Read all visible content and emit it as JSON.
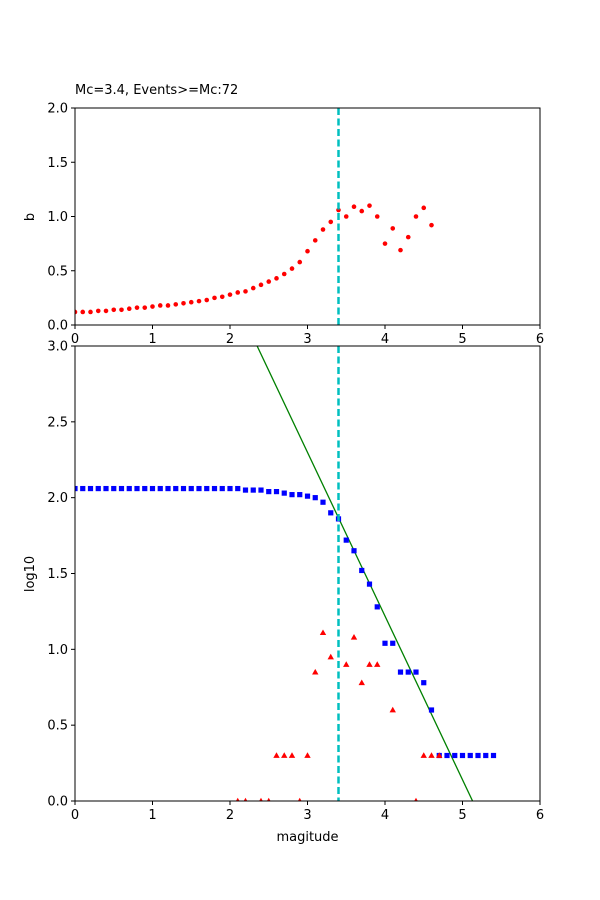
{
  "chart_data": [
    {
      "type": "scatter",
      "title": "Mc=3.4, Events>=Mc:72",
      "xlabel": "",
      "ylabel": "b",
      "xlim": [
        0,
        6
      ],
      "ylim": [
        0,
        2
      ],
      "xticks": [
        "0",
        "1",
        "2",
        "3",
        "4",
        "5",
        "6"
      ],
      "yticks": [
        "0.0",
        "0.5",
        "1.0",
        "1.5",
        "2.0"
      ],
      "grid": false,
      "mc_line": {
        "x": 3.4,
        "color": "#00bfbf"
      },
      "series": [
        {
          "marker": "circle",
          "color": "#ff0000",
          "points": [
            [
              0.0,
              0.12
            ],
            [
              0.1,
              0.12
            ],
            [
              0.2,
              0.12
            ],
            [
              0.3,
              0.13
            ],
            [
              0.4,
              0.13
            ],
            [
              0.5,
              0.14
            ],
            [
              0.6,
              0.14
            ],
            [
              0.7,
              0.15
            ],
            [
              0.8,
              0.16
            ],
            [
              0.9,
              0.16
            ],
            [
              1.0,
              0.17
            ],
            [
              1.1,
              0.18
            ],
            [
              1.2,
              0.18
            ],
            [
              1.3,
              0.19
            ],
            [
              1.4,
              0.2
            ],
            [
              1.5,
              0.21
            ],
            [
              1.6,
              0.22
            ],
            [
              1.7,
              0.23
            ],
            [
              1.8,
              0.25
            ],
            [
              1.9,
              0.26
            ],
            [
              2.0,
              0.28
            ],
            [
              2.1,
              0.3
            ],
            [
              2.2,
              0.31
            ],
            [
              2.3,
              0.34
            ],
            [
              2.4,
              0.37
            ],
            [
              2.5,
              0.4
            ],
            [
              2.6,
              0.43
            ],
            [
              2.7,
              0.47
            ],
            [
              2.8,
              0.52
            ],
            [
              2.9,
              0.58
            ],
            [
              3.0,
              0.68
            ],
            [
              3.1,
              0.78
            ],
            [
              3.2,
              0.88
            ],
            [
              3.3,
              0.95
            ],
            [
              3.4,
              1.06
            ],
            [
              3.5,
              1.0
            ],
            [
              3.6,
              1.09
            ],
            [
              3.7,
              1.05
            ],
            [
              3.8,
              1.1
            ],
            [
              3.9,
              1.0
            ],
            [
              4.0,
              0.75
            ],
            [
              4.1,
              0.89
            ],
            [
              4.2,
              0.69
            ],
            [
              4.3,
              0.81
            ],
            [
              4.4,
              1.0
            ],
            [
              4.5,
              1.08
            ],
            [
              4.6,
              0.92
            ]
          ]
        }
      ]
    },
    {
      "type": "scatter",
      "title": "",
      "xlabel": "magitude",
      "ylabel": "log10",
      "xlim": [
        0,
        6
      ],
      "ylim": [
        0,
        3
      ],
      "xticks": [
        "0",
        "1",
        "2",
        "3",
        "4",
        "5",
        "6"
      ],
      "yticks": [
        "0.0",
        "0.5",
        "1.0",
        "1.5",
        "2.0",
        "2.5",
        "3.0"
      ],
      "grid": false,
      "mc_line": {
        "x": 3.4,
        "color": "#00bfbf"
      },
      "fit_line": {
        "color": "#008000",
        "points": [
          [
            2.35,
            3.0
          ],
          [
            5.13,
            0.0
          ]
        ]
      },
      "series": [
        {
          "marker": "square",
          "color": "#0000ff",
          "points": [
            [
              0.0,
              2.06
            ],
            [
              0.1,
              2.06
            ],
            [
              0.2,
              2.06
            ],
            [
              0.3,
              2.06
            ],
            [
              0.4,
              2.06
            ],
            [
              0.5,
              2.06
            ],
            [
              0.6,
              2.06
            ],
            [
              0.7,
              2.06
            ],
            [
              0.8,
              2.06
            ],
            [
              0.9,
              2.06
            ],
            [
              1.0,
              2.06
            ],
            [
              1.1,
              2.06
            ],
            [
              1.2,
              2.06
            ],
            [
              1.3,
              2.06
            ],
            [
              1.4,
              2.06
            ],
            [
              1.5,
              2.06
            ],
            [
              1.6,
              2.06
            ],
            [
              1.7,
              2.06
            ],
            [
              1.8,
              2.06
            ],
            [
              1.9,
              2.06
            ],
            [
              2.0,
              2.06
            ],
            [
              2.1,
              2.06
            ],
            [
              2.2,
              2.05
            ],
            [
              2.3,
              2.05
            ],
            [
              2.4,
              2.05
            ],
            [
              2.5,
              2.04
            ],
            [
              2.6,
              2.04
            ],
            [
              2.7,
              2.03
            ],
            [
              2.8,
              2.02
            ],
            [
              2.9,
              2.02
            ],
            [
              3.0,
              2.01
            ],
            [
              3.1,
              2.0
            ],
            [
              3.2,
              1.97
            ],
            [
              3.3,
              1.9
            ],
            [
              3.4,
              1.86
            ],
            [
              3.5,
              1.72
            ],
            [
              3.6,
              1.65
            ],
            [
              3.7,
              1.52
            ],
            [
              3.8,
              1.43
            ],
            [
              3.9,
              1.28
            ],
            [
              4.0,
              1.04
            ],
            [
              4.1,
              1.04
            ],
            [
              4.2,
              0.85
            ],
            [
              4.3,
              0.85
            ],
            [
              4.4,
              0.85
            ],
            [
              4.5,
              0.78
            ],
            [
              4.6,
              0.6
            ],
            [
              4.7,
              0.3
            ],
            [
              4.8,
              0.3
            ],
            [
              4.9,
              0.3
            ],
            [
              5.0,
              0.3
            ],
            [
              5.1,
              0.3
            ],
            [
              5.2,
              0.3
            ],
            [
              5.3,
              0.3
            ],
            [
              5.4,
              0.3
            ]
          ]
        },
        {
          "marker": "triangle",
          "color": "#ff0000",
          "points": [
            [
              2.1,
              0.0
            ],
            [
              2.2,
              0.0
            ],
            [
              2.4,
              0.0
            ],
            [
              2.5,
              0.0
            ],
            [
              2.6,
              0.3
            ],
            [
              2.7,
              0.3
            ],
            [
              2.8,
              0.3
            ],
            [
              2.9,
              0.0
            ],
            [
              3.0,
              0.3
            ],
            [
              3.1,
              0.85
            ],
            [
              3.2,
              1.11
            ],
            [
              3.3,
              0.95
            ],
            [
              3.5,
              0.9
            ],
            [
              3.6,
              1.08
            ],
            [
              3.7,
              0.78
            ],
            [
              3.8,
              0.9
            ],
            [
              3.9,
              0.9
            ],
            [
              4.1,
              0.6
            ],
            [
              4.4,
              0.0
            ],
            [
              4.5,
              0.3
            ],
            [
              4.6,
              0.3
            ],
            [
              4.7,
              0.3
            ]
          ]
        }
      ]
    }
  ]
}
